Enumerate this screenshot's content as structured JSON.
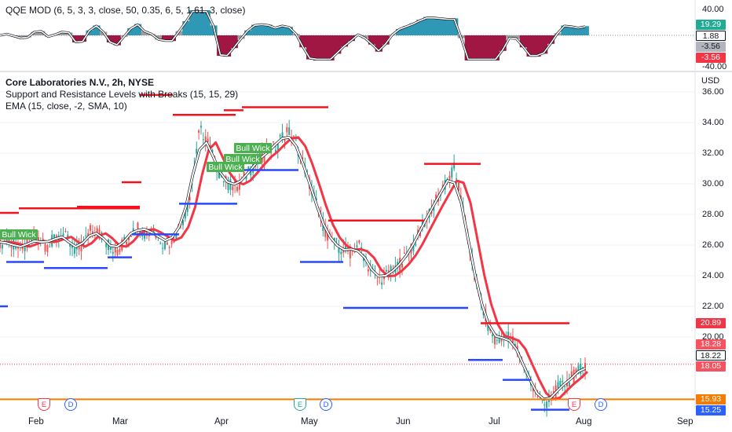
{
  "oscillator": {
    "legend": "QQE MOD (6, 5, 3, 3, close, 50, 0.35, 6, 5, 1.61, 3, close)",
    "axis_labels": [
      "40.00",
      "20.00",
      "-40.00"
    ],
    "tags": [
      {
        "text": "19.29",
        "bg": "#22ab94",
        "fg": "#ffffff"
      },
      {
        "text": "1.88",
        "bg": "#ffffff",
        "fg": "#131722"
      },
      {
        "text": "-3.56",
        "bg": "#b2b5be",
        "fg": "#131722"
      },
      {
        "text": "-3.56",
        "bg": "#f23645",
        "fg": "#ffffff"
      }
    ]
  },
  "price": {
    "symbol": "Core Laboratories N.V., 2h, NYSE",
    "indicator_1": "Support and Resistance Levels with Breaks (15, 15, 29)",
    "indicator_2": "EMA (15, close, -2, SMA, 10)",
    "currency": "USD",
    "axis_labels": [
      "36.00",
      "34.00",
      "32.00",
      "30.00",
      "28.00",
      "26.00",
      "24.00",
      "22.00",
      "20.00"
    ],
    "tags": [
      {
        "text": "20.89",
        "bg": "#f23645",
        "fg": "#ffffff"
      },
      {
        "text": "18.28",
        "bg": "#f7525f",
        "fg": "#ffffff"
      },
      {
        "text": "18.22",
        "bg": "#ffffff",
        "fg": "#131722"
      },
      {
        "text": "18.05",
        "bg": "#f7525f",
        "fg": "#ffffff"
      },
      {
        "text": "15.93",
        "bg": "#f57c00",
        "fg": "#ffffff"
      },
      {
        "text": "15.25",
        "bg": "#2962ff",
        "fg": "#ffffff"
      }
    ],
    "bull_wick_labels": [
      "Bull Wick",
      "Bull Wick",
      "Bull Wick",
      "Bull Wick"
    ],
    "events": [
      {
        "letter": "E",
        "type": "earnings"
      },
      {
        "letter": "D",
        "type": "dividend"
      },
      {
        "letter": "E",
        "type": "earnings"
      },
      {
        "letter": "D",
        "type": "dividend"
      },
      {
        "letter": "E",
        "type": "earnings"
      },
      {
        "letter": "D",
        "type": "dividend"
      }
    ]
  },
  "time_axis": {
    "months": [
      "Feb",
      "Mar",
      "Apr",
      "May",
      "Jun",
      "Jul",
      "Aug",
      "Sep"
    ]
  },
  "colors": {
    "support": "#2948ff",
    "resistance": "#f2131f",
    "ema_fast": "#ffffff",
    "ema_slow": "#f23645",
    "candle_up": "#26a69a",
    "candle_down": "#ef5350",
    "qqe_pos": "#2e98b5",
    "qqe_neg": "#a01744",
    "label_green": "#4caf50",
    "hline_orange": "#f57c00"
  },
  "chart_data": {
    "type": "line",
    "series": [
      {
        "values": [
          26.1,
          26.3,
          26.0,
          25.7,
          26.0,
          26.5,
          26.3,
          25.8,
          26.6,
          26.8,
          26.2,
          25.6,
          25.9,
          26.9,
          27.0,
          26.4,
          25.9,
          25.6,
          26.2,
          26.9,
          27.2,
          26.8,
          27.1,
          26.6,
          26.0,
          26.3,
          27.2,
          28.0,
          30.2,
          33.5,
          33.0,
          31.6,
          30.6,
          30.0,
          29.8,
          30.1,
          30.7,
          31.3,
          31.7,
          32.2,
          32.4,
          33.1,
          33.4,
          32.6,
          31.4,
          30.0,
          28.6,
          27.2,
          26.3,
          26.0,
          25.6,
          25.5,
          26.1,
          25.2,
          24.2,
          23.8,
          23.9,
          24.3,
          24.7,
          25.2,
          26.0,
          26.9,
          27.8,
          28.6,
          29.4,
          30.2,
          31.0,
          29.0,
          26.3,
          23.9,
          22.0,
          20.6,
          19.8,
          19.8,
          20.2,
          19.3,
          18.1,
          17.2,
          16.3,
          15.5,
          16.0,
          16.6,
          16.9,
          17.3,
          17.7,
          18.2
        ]
      }
    ]
  }
}
